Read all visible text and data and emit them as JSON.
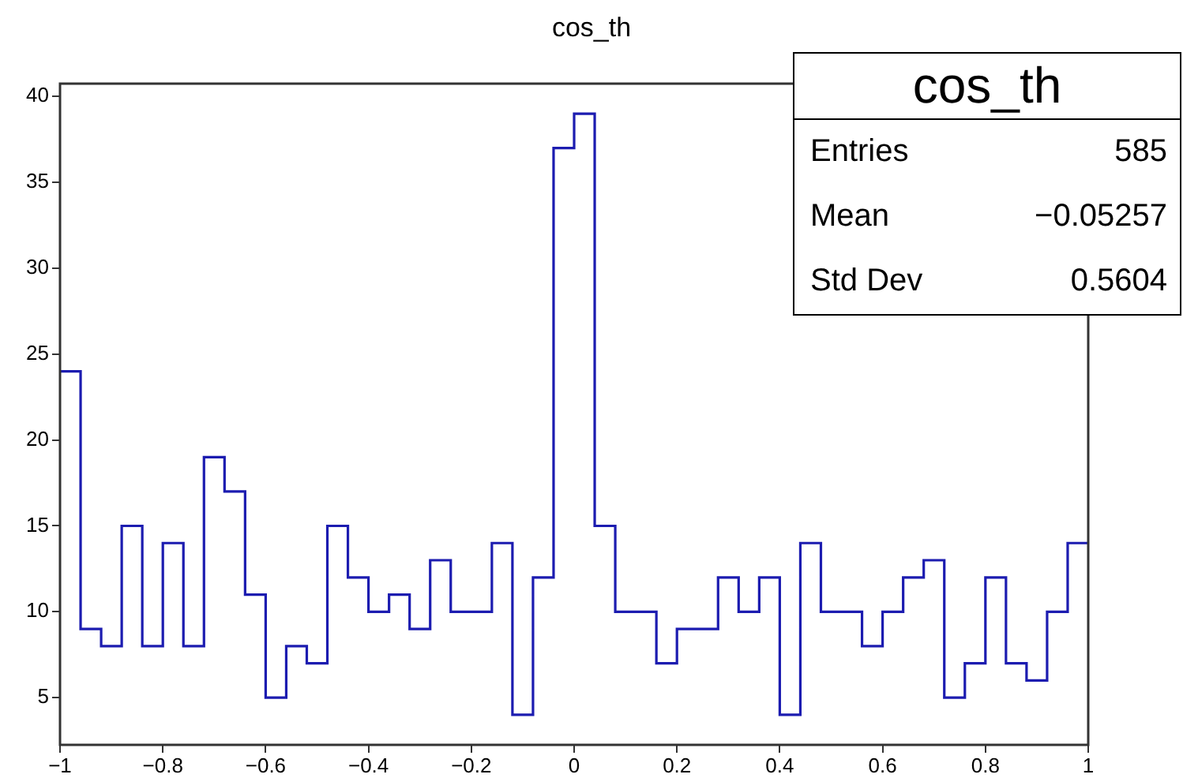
{
  "chart_data": {
    "type": "histogram",
    "title": "cos_th",
    "bins": [
      -1,
      -0.96,
      -0.92,
      -0.88,
      -0.84,
      -0.8,
      -0.76,
      -0.72,
      -0.68,
      -0.64,
      -0.6,
      -0.56,
      -0.52,
      -0.48,
      -0.44,
      -0.4,
      -0.36,
      -0.32,
      -0.28,
      -0.24,
      -0.2,
      -0.16,
      -0.12,
      -0.08,
      -0.04,
      0,
      0.04,
      0.08,
      0.12,
      0.16,
      0.2,
      0.24,
      0.28,
      0.32,
      0.36,
      0.4,
      0.44,
      0.48,
      0.52,
      0.56,
      0.6,
      0.64,
      0.68,
      0.72,
      0.76,
      0.8,
      0.84,
      0.88,
      0.92,
      0.96,
      1
    ],
    "values": [
      24,
      9,
      8,
      15,
      8,
      14,
      8,
      19,
      17,
      11,
      5,
      8,
      7,
      15,
      12,
      10,
      11,
      9,
      13,
      10,
      10,
      14,
      4,
      12,
      37,
      39,
      15,
      10,
      10,
      7,
      9,
      9,
      12,
      10,
      12,
      4,
      14,
      10,
      10,
      8,
      10,
      12,
      13,
      5,
      7,
      12,
      7,
      6,
      10,
      14
    ],
    "color": "#1c1cb0",
    "xlim": [
      -1,
      1
    ],
    "xticks": [
      {
        "value": -1,
        "label": "−1"
      },
      {
        "value": -0.8,
        "label": "−0.8"
      },
      {
        "value": -0.6,
        "label": "−0.6"
      },
      {
        "value": -0.4,
        "label": "−0.4"
      },
      {
        "value": -0.2,
        "label": "−0.2"
      },
      0,
      0.2,
      0.4,
      0.6,
      0.8,
      1
    ],
    "ylim": [
      2.25,
      40.75
    ],
    "yticks": [
      5,
      10,
      15,
      20,
      25,
      30,
      35,
      40
    ],
    "grid": false,
    "legend": false,
    "annotations": [
      "cos_th",
      "Entries",
      "585",
      "Mean",
      "−0.05257",
      "Std Dev",
      "0.5604"
    ]
  }
}
